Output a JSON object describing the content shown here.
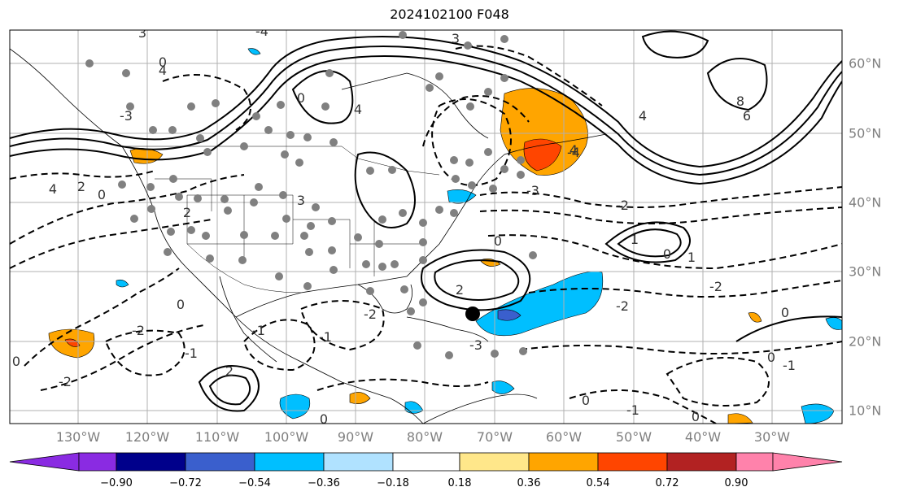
{
  "title": "2024102100 F048",
  "lon_labels": [
    "130°W",
    "120°W",
    "110°W",
    "100°W",
    "90°W",
    "80°W",
    "70°W",
    "60°W",
    "50°W",
    "40°W",
    "30°W"
  ],
  "lat_labels": [
    "60°N",
    "50°N",
    "40°N",
    "30°N",
    "20°N",
    "10°N"
  ],
  "colorbar": {
    "ticks": [
      "−0.90",
      "−0.72",
      "−0.54",
      "−0.36",
      "−0.18",
      "0.18",
      "0.36",
      "0.54",
      "0.72",
      "0.90"
    ],
    "colors": [
      "#8a2be2",
      "#00008b",
      "#3a5fcd",
      "#00bfff",
      "#b0e2ff",
      "#ffffff",
      "#ffe78a",
      "#ffa500",
      "#ff4500",
      "#b22222",
      "#ff82ab"
    ]
  },
  "contour_labels": [
    {
      "t": "4"
    },
    {
      "t": "2"
    },
    {
      "t": "0"
    },
    {
      "t": "-2"
    },
    {
      "t": "-4"
    },
    {
      "t": "6"
    },
    {
      "t": "8"
    },
    {
      "t": "-1"
    },
    {
      "t": "1"
    },
    {
      "t": "-3"
    },
    {
      "t": "3"
    }
  ]
}
